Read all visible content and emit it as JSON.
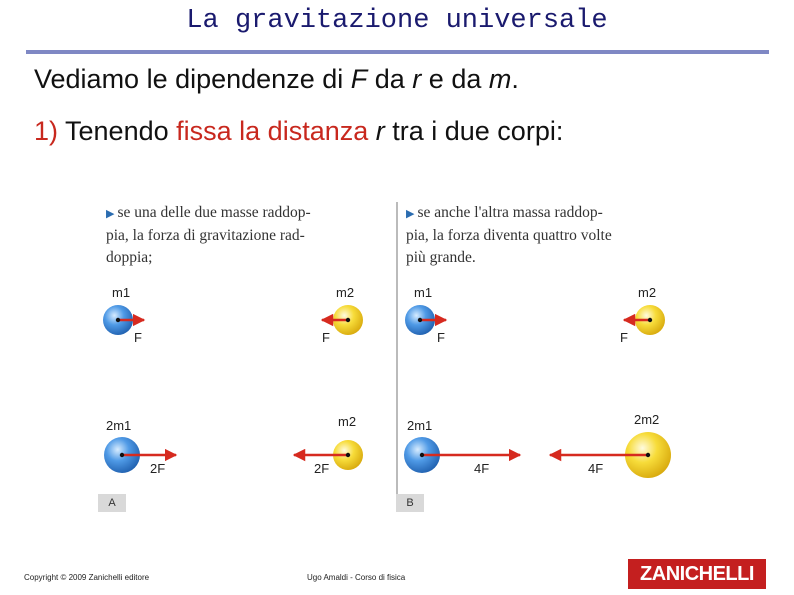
{
  "slide": {
    "title": "La gravitazione universale",
    "line1": {
      "a": "Vediamo le dipendenze di ",
      "F": "F",
      "b": " da ",
      "r": "r",
      "c": " e da ",
      "m": "m",
      "d": "."
    },
    "line2": {
      "num": "1)",
      "a": " Tenendo ",
      "red": "fissa la distanza ",
      "r": "r",
      "b": " tra i due corpi:"
    }
  },
  "figure": {
    "panel_a": {
      "caption_lines": [
        "se una delle due masse raddop-",
        "pia, la forza di gravitazione rad-",
        "doppia;"
      ],
      "tag": "A",
      "top_row": {
        "left_mass": "m1",
        "right_mass": "m2",
        "left_force": "F",
        "right_force": "F"
      },
      "bottom_row": {
        "left_mass": "2m1",
        "right_mass": "m2",
        "left_force": "2F",
        "right_force": "2F"
      }
    },
    "panel_b": {
      "caption_lines": [
        "se anche l'altra massa raddop-",
        "pia, la forza diventa quattro volte",
        "più grande."
      ],
      "tag": "B",
      "top_row": {
        "left_mass": "m1",
        "right_mass": "m2",
        "left_force": "F",
        "right_force": "F"
      },
      "bottom_row": {
        "left_mass": "2m1",
        "right_mass": "2m2",
        "left_force": "4F",
        "right_force": "4F"
      }
    },
    "colors": {
      "blue_sphere": "#3a8ee0",
      "yellow_sphere": "#f2d21b",
      "arrow": "#d62a1f"
    }
  },
  "footer": {
    "copyright": "Copyright © 2009 Zanichelli editore",
    "course": "Ugo Amaldi - Corso di fisica",
    "logo": "ZANICHELLI"
  }
}
